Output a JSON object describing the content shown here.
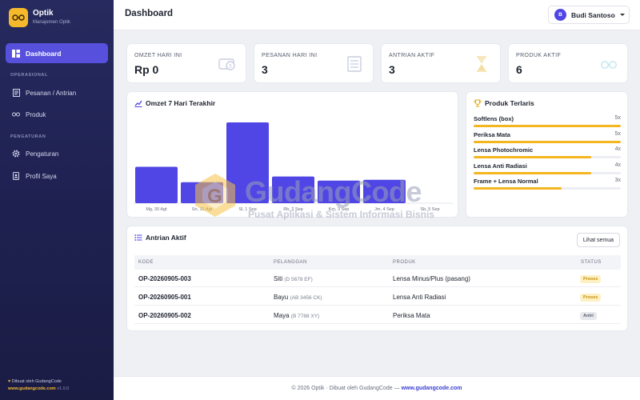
{
  "app": {
    "name": "Optik",
    "subtitle": "Manajemen Optik"
  },
  "sidebar": {
    "active": {
      "label": "Dashboard",
      "icon": "dashboard-icon"
    },
    "sections": [
      {
        "label": "OPERASIONAL"
      },
      {
        "label": "PENGATURAN"
      }
    ],
    "items": [
      {
        "label": "Pesanan / Antrian",
        "icon": "receipt-icon"
      },
      {
        "label": "Produk",
        "icon": "glasses-icon"
      },
      {
        "label": "Pengaturan",
        "icon": "gear-icon"
      },
      {
        "label": "Profil Saya",
        "icon": "id-card-icon"
      }
    ],
    "footer": {
      "line1": "Dibuat oleh GudangCode",
      "site": "www.gudangcode.com",
      "version": "v1.0.0"
    }
  },
  "topbar": {
    "title": "Dashboard",
    "user": {
      "initial": "B",
      "name": "Budi Santoso"
    }
  },
  "stats": [
    {
      "label": "OMZET HARI INI",
      "value": "Rp 0",
      "icon": "money-icon"
    },
    {
      "label": "PESANAN HARI INI",
      "value": "3",
      "icon": "list-icon"
    },
    {
      "label": "ANTRIAN AKTIF",
      "value": "3",
      "icon": "hourglass-icon"
    },
    {
      "label": "PRODUK AKTIF",
      "value": "6",
      "icon": "glasses-icon"
    }
  ],
  "chart_card": {
    "title": "Omzet 7 Hari Terakhir"
  },
  "chart_data": {
    "type": "bar",
    "categories": [
      "Mg, 30 Agt",
      "Sn, 31 Agt",
      "Sl, 1 Sep",
      "Rb, 2 Sep",
      "Km, 3 Sep",
      "Jm, 4 Sep",
      "Sb, 5 Sep"
    ],
    "values": [
      45,
      26,
      100,
      33,
      28,
      29,
      0
    ],
    "ylim": [
      0,
      100
    ],
    "color": "#4f46e5",
    "grid": false
  },
  "top_products": {
    "title": "Produk Terlaris",
    "items": [
      {
        "name": "Softlens (box)",
        "count": "5x",
        "ratio": 1.0
      },
      {
        "name": "Periksa Mata",
        "count": "5x",
        "ratio": 1.0
      },
      {
        "name": "Lensa Photochromic",
        "count": "4x",
        "ratio": 0.8
      },
      {
        "name": "Lensa Anti Radiasi",
        "count": "4x",
        "ratio": 0.8
      },
      {
        "name": "Frame + Lensa Normal",
        "count": "3x",
        "ratio": 0.6
      }
    ]
  },
  "queue": {
    "title": "Antrian Aktif",
    "see_all": "Lihat semua",
    "columns": [
      "KODE",
      "PELANGGAN",
      "PRODUK",
      "STATUS"
    ],
    "rows": [
      {
        "code": "OP-20260905-003",
        "customer": "Siti",
        "plate": "(D 5678 EF)",
        "product": "Lensa Minus/Plus (pasang)",
        "status": "Proses"
      },
      {
        "code": "OP-20260905-001",
        "customer": "Bayu",
        "plate": "(AB 3456 CK)",
        "product": "Lensa Anti Radiasi",
        "status": "Proses"
      },
      {
        "code": "OP-20260905-002",
        "customer": "Maya",
        "plate": "(B 7788 XY)",
        "product": "Periksa Mata",
        "status": "Antri"
      }
    ]
  },
  "footer": {
    "text": "© 2026 Optik · Dibuat oleh GudangCode —",
    "link": "www.gudangcode.com"
  },
  "watermark": {
    "title": "GudangCode",
    "subtitle": "Pusat Aplikasi & Sistem Informasi Bisnis"
  },
  "colors": {
    "accent": "#5650dd",
    "bar": "#4f46e5",
    "gold": "#f4b61f",
    "sidebar": "#1f2252"
  }
}
